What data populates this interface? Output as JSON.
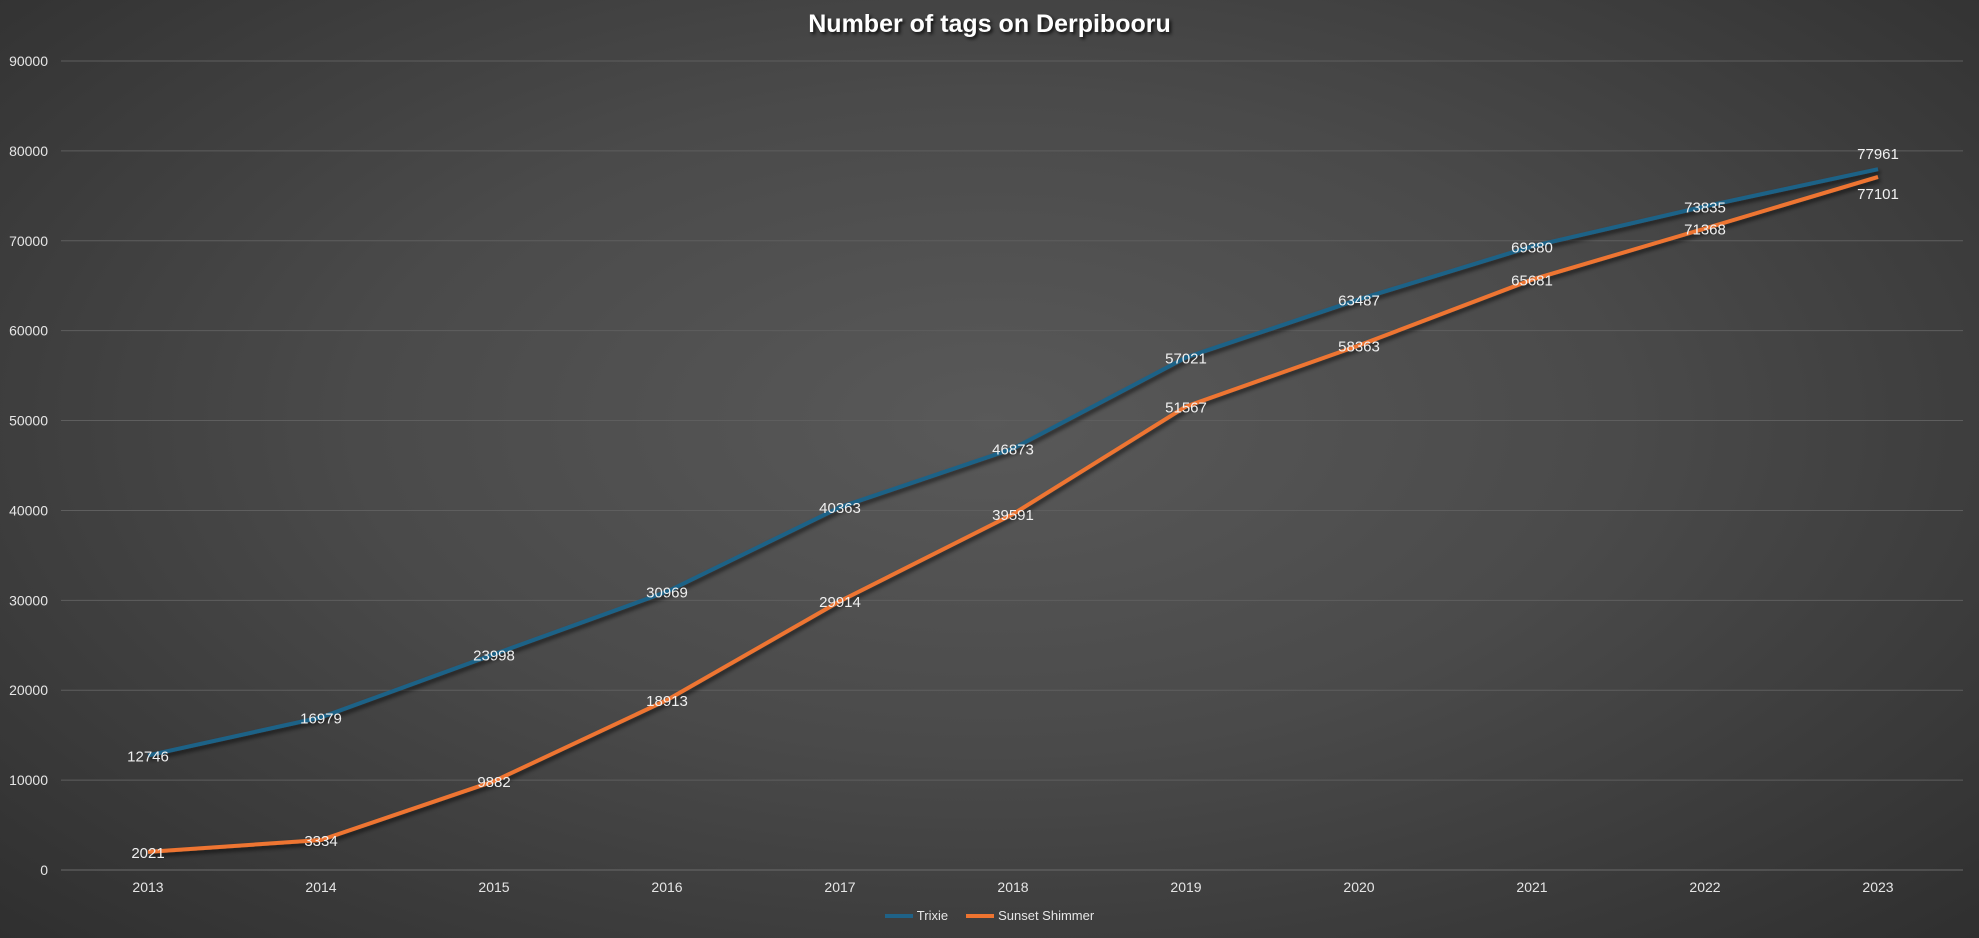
{
  "chart_data": {
    "type": "line",
    "title": "Number of tags on Derpibooru",
    "xlabel": "",
    "ylabel": "",
    "categories": [
      "2013",
      "2014",
      "2015",
      "2016",
      "2017",
      "2018",
      "2019",
      "2020",
      "2021",
      "2022",
      "2023"
    ],
    "ylim": [
      0,
      90000
    ],
    "yticks": [
      "0",
      "10000",
      "20000",
      "30000",
      "40000",
      "50000",
      "60000",
      "70000",
      "80000",
      "90000"
    ],
    "grid": true,
    "legend_position": "bottom",
    "series": [
      {
        "name": "Trixie",
        "color": "#1f6287",
        "values": [
          12746,
          16979,
          23998,
          30969,
          40363,
          46873,
          57021,
          63487,
          69380,
          73835,
          77961
        ]
      },
      {
        "name": "Sunset Shimmer",
        "color": "#ee7430",
        "values": [
          2021,
          3334,
          9882,
          18913,
          29914,
          39591,
          51567,
          58363,
          65681,
          71368,
          77101
        ]
      }
    ]
  }
}
